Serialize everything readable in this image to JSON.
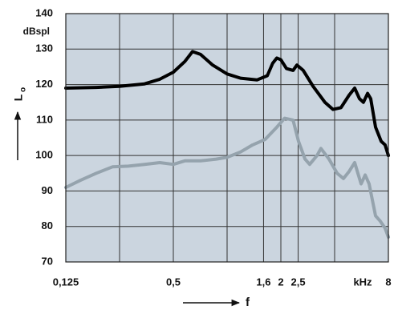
{
  "chart_data": {
    "type": "line",
    "x_scale": "log",
    "xlim": [
      0.125,
      8
    ],
    "ylim": [
      70,
      140
    ],
    "yticks": [
      70,
      80,
      90,
      100,
      110,
      120,
      130,
      140
    ],
    "xticks": [
      {
        "value": 0.125,
        "label": "0,125"
      },
      {
        "value": 0.25,
        "label": null
      },
      {
        "value": 0.5,
        "label": "0,5"
      },
      {
        "value": 1,
        "label": null
      },
      {
        "value": 1.6,
        "label": "1,6"
      },
      2,
      {
        "value": 2.5,
        "label": "2,5"
      },
      {
        "value": 4,
        "label": null
      },
      8
    ],
    "grid": true,
    "y_unit": "dBspl",
    "y_axis_label": {
      "text": "L",
      "subscript": "o"
    },
    "x_axis_label": "f",
    "x_unit": "kHz",
    "series": [
      {
        "color": "#000000",
        "x": [
          0.125,
          0.185,
          0.25,
          0.345,
          0.42,
          0.5,
          0.58,
          0.64,
          0.71,
          0.83,
          1.0,
          1.19,
          1.47,
          1.68,
          1.8,
          1.9,
          2.0,
          2.15,
          2.34,
          2.46,
          2.67,
          3.03,
          3.53,
          3.92,
          4.34,
          4.82,
          5.18,
          5.51,
          5.8,
          6.12,
          6.37,
          6.78,
          7.29,
          7.67,
          8
        ],
        "values": [
          119,
          119.2,
          119.5,
          120.2,
          121.5,
          123.5,
          126.5,
          129.3,
          128.5,
          125.5,
          123,
          121.8,
          121.3,
          122.5,
          126,
          127.5,
          127,
          124.5,
          124,
          125.5,
          124,
          119.5,
          115,
          113,
          113.5,
          117,
          119,
          116,
          115,
          117.5,
          116,
          108,
          104,
          103,
          100
        ]
      },
      {
        "color": "#95a3ad",
        "x": [
          0.125,
          0.151,
          0.185,
          0.228,
          0.28,
          0.345,
          0.42,
          0.5,
          0.58,
          0.71,
          0.87,
          1.0,
          1.19,
          1.39,
          1.63,
          1.9,
          2.1,
          2.34,
          2.51,
          2.73,
          2.9,
          3.19,
          3.35,
          3.72,
          4.13,
          4.48,
          4.82,
          5.18,
          5.63,
          5.93,
          6.24,
          6.78,
          7.21,
          7.67,
          8
        ],
        "values": [
          91,
          93,
          95,
          96.8,
          97,
          97.5,
          98,
          97.5,
          98.5,
          98.5,
          99,
          99.5,
          101,
          103,
          104.5,
          108,
          110.5,
          110,
          104,
          99,
          97.5,
          100,
          102,
          99,
          95,
          93.5,
          95.5,
          98,
          92,
          94.5,
          92,
          83,
          81.5,
          79.5,
          77
        ]
      }
    ]
  }
}
